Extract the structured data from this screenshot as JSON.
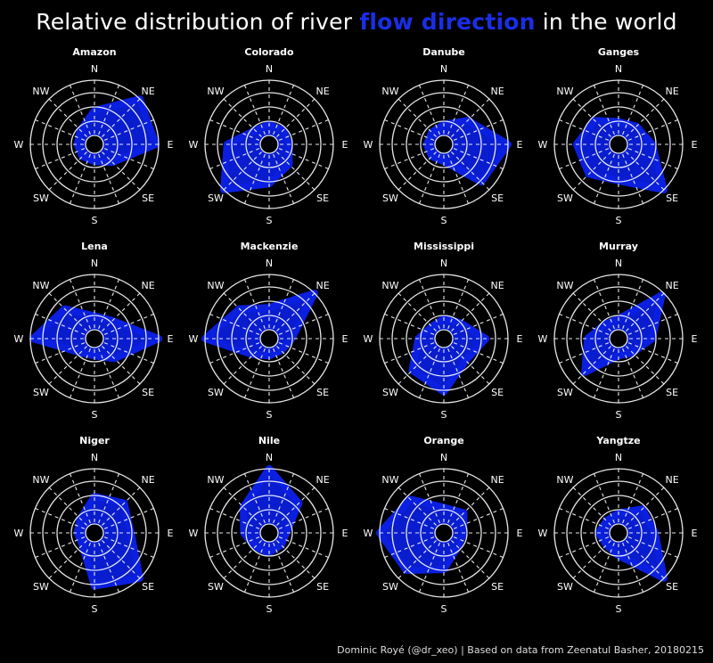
{
  "title": {
    "prefix": "Relative distribution of river ",
    "highlight": "flow direction",
    "suffix": " in the world"
  },
  "caption": "Dominic Royé (@dr_xeo) | Based on data from Zeenatul Basher, 20180215",
  "colors": {
    "background": "#000000",
    "fill": "#0a1fe0",
    "accent": "#1a2ee6",
    "grid": "#ffffff"
  },
  "chart_data": {
    "type": "radar",
    "directions": [
      "N",
      "NE",
      "E",
      "SE",
      "S",
      "SW",
      "W",
      "NW"
    ],
    "rlim": [
      0,
      1
    ],
    "grid_rings": 5,
    "series": [
      {
        "name": "Amazon",
        "values": [
          0.45,
          1.0,
          0.95,
          0.3,
          0.15,
          0.15,
          0.15,
          0.2
        ]
      },
      {
        "name": "Colorado",
        "values": [
          0.2,
          0.2,
          0.2,
          0.35,
          0.55,
          1.0,
          0.6,
          0.2
        ]
      },
      {
        "name": "Danube",
        "values": [
          0.2,
          0.45,
          1.0,
          0.8,
          0.15,
          0.15,
          0.15,
          0.15
        ]
      },
      {
        "name": "Ganges",
        "values": [
          0.25,
          0.3,
          0.45,
          1.0,
          0.5,
          0.6,
          0.6,
          0.45
        ]
      },
      {
        "name": "Lena",
        "values": [
          0.25,
          0.3,
          1.0,
          0.35,
          0.15,
          0.2,
          0.95,
          0.6
        ]
      },
      {
        "name": "Mackenzie",
        "values": [
          0.4,
          1.0,
          0.25,
          0.15,
          0.15,
          0.25,
          1.0,
          0.6
        ]
      },
      {
        "name": "Mississippi",
        "values": [
          0.2,
          0.25,
          0.6,
          0.4,
          0.8,
          0.65,
          0.3,
          0.15
        ]
      },
      {
        "name": "Murray",
        "values": [
          0.2,
          0.95,
          0.45,
          0.2,
          0.15,
          0.7,
          0.4,
          0.2
        ]
      },
      {
        "name": "Niger",
        "values": [
          0.5,
          0.6,
          0.5,
          1.0,
          0.8,
          0.15,
          0.15,
          0.2
        ]
      },
      {
        "name": "Nile",
        "values": [
          1.0,
          0.6,
          0.15,
          0.15,
          0.2,
          0.2,
          0.3,
          0.5
        ]
      },
      {
        "name": "Orange",
        "values": [
          0.3,
          0.35,
          0.2,
          0.2,
          0.5,
          0.8,
          1.0,
          0.7
        ]
      },
      {
        "name": "Yangtze",
        "values": [
          0.2,
          0.45,
          0.5,
          1.0,
          0.25,
          0.15,
          0.2,
          0.15
        ]
      }
    ]
  }
}
